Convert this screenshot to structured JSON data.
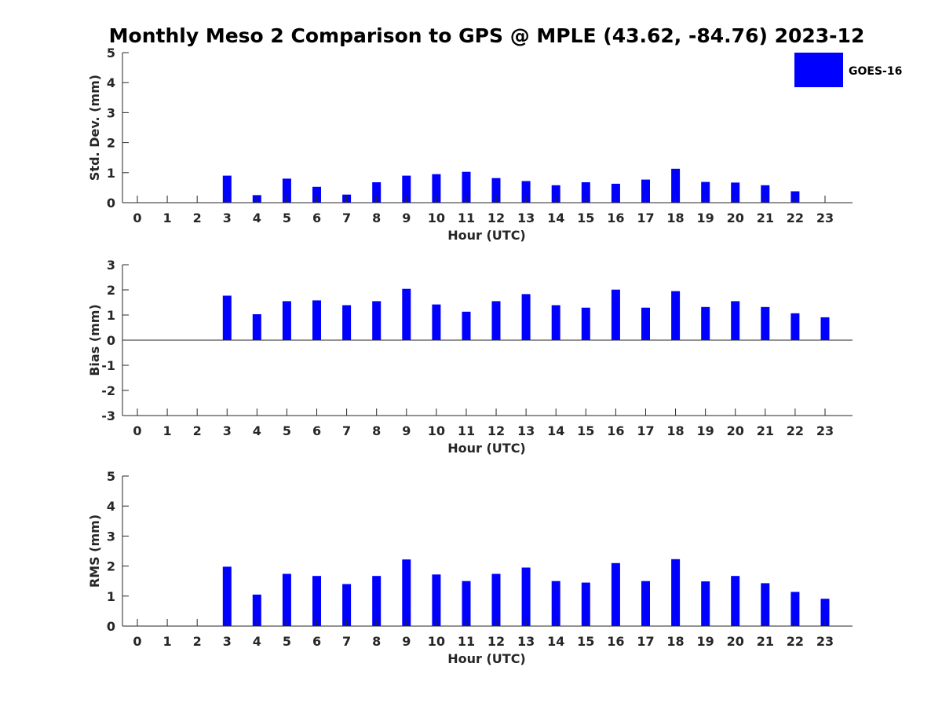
{
  "title": "Monthly Meso 2 Comparison to GPS @ MPLE (43.62, -84.76) 2023-12",
  "legend": {
    "label": "GOES-16",
    "color": "#0000ff",
    "position": "top-right"
  },
  "bar_color": "#0000ff",
  "chart_data": [
    {
      "type": "bar",
      "xlabel": "Hour (UTC)",
      "ylabel": "Std. Dev. (mm)",
      "categories": [
        "0",
        "1",
        "2",
        "3",
        "4",
        "5",
        "6",
        "7",
        "8",
        "9",
        "10",
        "11",
        "12",
        "13",
        "14",
        "15",
        "16",
        "17",
        "18",
        "19",
        "20",
        "21",
        "22",
        "23"
      ],
      "ylim": [
        0,
        5
      ],
      "yticks": [
        "0",
        "1",
        "2",
        "3",
        "4",
        "5"
      ],
      "series": [
        {
          "name": "GOES-16",
          "values": [
            null,
            null,
            null,
            0.9,
            0.25,
            0.8,
            0.53,
            0.27,
            0.68,
            0.9,
            0.95,
            1.03,
            0.82,
            0.72,
            0.58,
            0.68,
            0.63,
            0.77,
            1.13,
            0.69,
            0.67,
            0.58,
            0.38,
            null
          ]
        }
      ],
      "legend": "top-right",
      "grid": false
    },
    {
      "type": "bar",
      "xlabel": "Hour (UTC)",
      "ylabel": "Bias (mm)",
      "categories": [
        "0",
        "1",
        "2",
        "3",
        "4",
        "5",
        "6",
        "7",
        "8",
        "9",
        "10",
        "11",
        "12",
        "13",
        "14",
        "15",
        "16",
        "17",
        "18",
        "19",
        "20",
        "21",
        "22",
        "23"
      ],
      "ylim": [
        -3,
        3
      ],
      "yticks": [
        "-3",
        "-2",
        "-1",
        "0",
        "1",
        "2",
        "3"
      ],
      "series": [
        {
          "name": "GOES-16",
          "values": [
            null,
            null,
            null,
            1.77,
            1.03,
            1.55,
            1.58,
            1.39,
            1.55,
            2.04,
            1.42,
            1.13,
            1.55,
            1.83,
            1.39,
            1.29,
            2.01,
            1.29,
            1.95,
            1.32,
            1.55,
            1.32,
            1.07,
            0.91
          ]
        }
      ],
      "grid": false
    },
    {
      "type": "bar",
      "xlabel": "Hour (UTC)",
      "ylabel": "RMS (mm)",
      "categories": [
        "0",
        "1",
        "2",
        "3",
        "4",
        "5",
        "6",
        "7",
        "8",
        "9",
        "10",
        "11",
        "12",
        "13",
        "14",
        "15",
        "16",
        "17",
        "18",
        "19",
        "20",
        "21",
        "22",
        "23"
      ],
      "ylim": [
        0,
        5
      ],
      "yticks": [
        "0",
        "1",
        "2",
        "3",
        "4",
        "5"
      ],
      "series": [
        {
          "name": "GOES-16",
          "values": [
            null,
            null,
            null,
            1.98,
            1.05,
            1.74,
            1.67,
            1.4,
            1.67,
            2.22,
            1.72,
            1.5,
            1.74,
            1.95,
            1.5,
            1.45,
            2.1,
            1.5,
            2.23,
            1.49,
            1.67,
            1.43,
            1.14,
            0.91
          ]
        }
      ],
      "grid": false
    }
  ]
}
